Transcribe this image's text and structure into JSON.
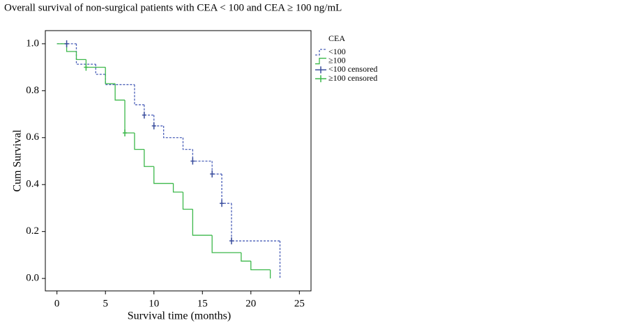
{
  "chart_data": {
    "type": "step",
    "title": "Overall survival of non-surgical patients with CEA < 100 and CEA ≥ 100 ng/mL",
    "x_label": "Survival time (months)",
    "y_label": "Cum Survival",
    "legend_title": "CEA",
    "legend_position": "right",
    "xlim": [
      -1.2,
      26.2
    ],
    "ylim": [
      -0.053,
      1.056
    ],
    "xticks": [
      0,
      5,
      10,
      15,
      20,
      25
    ],
    "yticks": [
      {
        "value": 0,
        "label": "0.0"
      },
      0.2,
      0.4,
      0.6,
      0.8,
      {
        "value": 1,
        "label": "1.0"
      }
    ],
    "series": [
      {
        "name": "<100",
        "kind": "curve",
        "color": "#4a5fb8",
        "dashed": true,
        "x": [
          0,
          2,
          4,
          5,
          8,
          9,
          10,
          11,
          13,
          14,
          16,
          17,
          18,
          23
        ],
        "values": [
          1,
          0.913,
          0.87,
          0.826,
          0.74,
          0.696,
          0.65,
          0.6,
          0.55,
          0.5,
          0.445,
          0.32,
          0.16,
          0
        ]
      },
      {
        "name": "≥100",
        "kind": "curve",
        "color": "#3cb84a",
        "dashed": false,
        "x": [
          0,
          1,
          2,
          3,
          5,
          6,
          7,
          8,
          9,
          10,
          12,
          13,
          14,
          16,
          19,
          20,
          22
        ],
        "values": [
          1,
          0.967,
          0.933,
          0.9,
          0.83,
          0.76,
          0.62,
          0.55,
          0.477,
          0.405,
          0.368,
          0.295,
          0.184,
          0.11,
          0.074,
          0.037,
          0
        ]
      },
      {
        "name": "<100 censored",
        "kind": "censored",
        "color": "#3a4d9c",
        "x": [
          1,
          9,
          10,
          14,
          16,
          17,
          18
        ],
        "values": [
          1,
          0.696,
          0.65,
          0.5,
          0.445,
          0.32,
          0.16
        ]
      },
      {
        "name": "≥100 censored",
        "kind": "censored",
        "color": "#3cb84a",
        "x": [
          3,
          7
        ],
        "values": [
          0.9,
          0.62
        ]
      }
    ]
  }
}
